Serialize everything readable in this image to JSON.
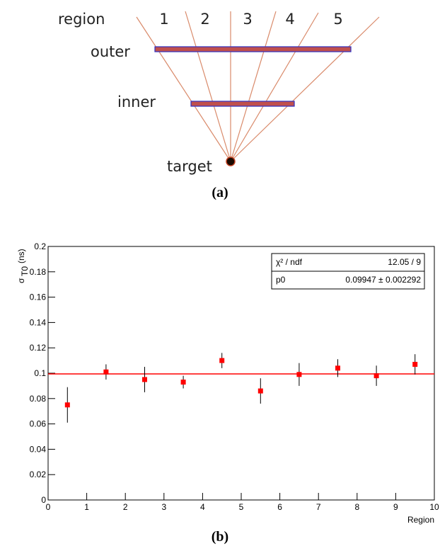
{
  "diagram": {
    "header": "region",
    "regions": [
      "1",
      "2",
      "3",
      "4",
      "5"
    ],
    "outer": "outer",
    "inner": "inner",
    "target": "target",
    "caption": "(a)"
  },
  "chart_data": {
    "type": "scatter",
    "ylabel": "σ",
    "ylabel_sub": "T0",
    "ylabel_unit": "(ns)",
    "xlabel": "Region",
    "caption": "(b)",
    "x": [
      0.5,
      1.5,
      2.5,
      3.5,
      4.5,
      5.5,
      6.5,
      7.5,
      8.5,
      9.5
    ],
    "values": [
      0.075,
      0.101,
      0.095,
      0.093,
      0.11,
      0.086,
      0.099,
      0.104,
      0.098,
      0.107
    ],
    "errors": [
      0.014,
      0.006,
      0.01,
      0.005,
      0.006,
      0.01,
      0.009,
      0.007,
      0.008,
      0.008
    ],
    "color": "#ff0000",
    "fit": {
      "value": 0.09947,
      "color": "#ff0000"
    },
    "stats": [
      {
        "label": "χ² / ndf",
        "value": "12.05 / 9"
      },
      {
        "label": "p0",
        "value": "0.09947 ± 0.002292"
      }
    ],
    "xlim": [
      0,
      10
    ],
    "xticks": [
      0,
      1,
      2,
      3,
      4,
      5,
      6,
      7,
      8,
      9,
      10
    ],
    "ylim": [
      0,
      0.2
    ],
    "yticks": [
      0,
      0.02,
      0.04,
      0.06,
      0.08,
      0.1,
      0.12,
      0.14,
      0.16,
      0.18,
      0.2
    ]
  }
}
